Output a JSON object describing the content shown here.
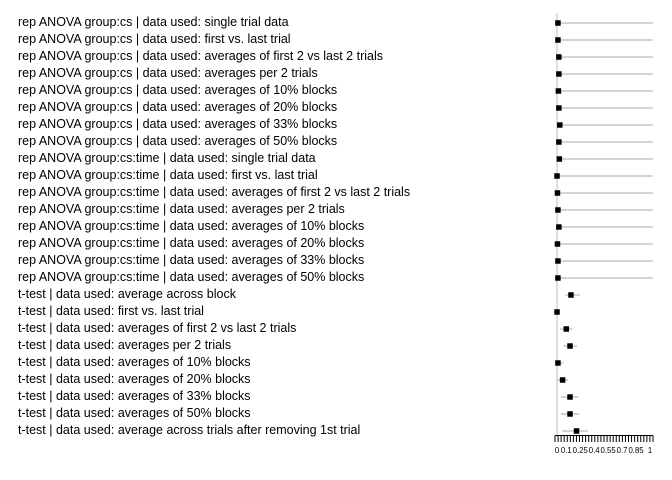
{
  "chart_data": {
    "type": "scatter",
    "description": "Dot plot of p-values with horizontal range lines for different statistical tests and data aggregation methods",
    "xlabel": "",
    "ylabel": "",
    "xlim": [
      0,
      1
    ],
    "grid": false,
    "legend": "none",
    "reference_line_x": 0,
    "marker": "filled-square",
    "colors": {
      "marker": "#000000",
      "range_line": "#c6c6c6",
      "reference_line": "#bdbdbd",
      "axis": "#000000",
      "text": "#000000"
    },
    "x_axis": {
      "tick_labels": [
        "0",
        "0.1",
        "0.25",
        "0.4",
        "0.55",
        "0.7",
        "0.85",
        "1"
      ],
      "tick_label_values": [
        0,
        0.1,
        0.25,
        0.4,
        0.55,
        0.7,
        0.85,
        1
      ],
      "minor_tick_count": 33
    },
    "rows": [
      {
        "label": "rep ANOVA group:cs | data used: single trial data",
        "p": 0.01,
        "lo": 0.0,
        "hi": 1.03
      },
      {
        "label": "rep ANOVA group:cs | data used: first vs. last trial",
        "p": 0.01,
        "lo": 0.0,
        "hi": 1.03
      },
      {
        "label": "rep ANOVA group:cs | data used: averages of first 2 vs last 2 trials",
        "p": 0.02,
        "lo": 0.0,
        "hi": 1.03
      },
      {
        "label": "rep ANOVA group:cs | data used: averages per 2 trials",
        "p": 0.02,
        "lo": 0.0,
        "hi": 1.03
      },
      {
        "label": "rep ANOVA group:cs | data used: averages of 10% blocks",
        "p": 0.015,
        "lo": 0.0,
        "hi": 1.03
      },
      {
        "label": "rep ANOVA group:cs | data used: averages of 20% blocks",
        "p": 0.02,
        "lo": 0.0,
        "hi": 1.03
      },
      {
        "label": "rep ANOVA group:cs | data used: averages of 33% blocks",
        "p": 0.03,
        "lo": 0.0,
        "hi": 1.03
      },
      {
        "label": "rep ANOVA group:cs | data used: averages of 50% blocks",
        "p": 0.02,
        "lo": 0.0,
        "hi": 1.03
      },
      {
        "label": "rep ANOVA group:cs:time | data used: single trial data",
        "p": 0.025,
        "lo": 0.0,
        "hi": 1.03
      },
      {
        "label": "rep ANOVA group:cs:time | data used: first vs. last trial",
        "p": 0.0,
        "lo": 0.0,
        "hi": 1.03
      },
      {
        "label": "rep ANOVA group:cs:time | data used: averages of first 2 vs last 2 trials",
        "p": 0.005,
        "lo": 0.0,
        "hi": 1.03
      },
      {
        "label": "rep ANOVA group:cs:time | data used: averages per 2 trials",
        "p": 0.01,
        "lo": 0.0,
        "hi": 1.03
      },
      {
        "label": "rep ANOVA group:cs:time | data used: averages of 10% blocks",
        "p": 0.02,
        "lo": 0.0,
        "hi": 1.03
      },
      {
        "label": "rep ANOVA group:cs:time | data used: averages of 20% blocks",
        "p": 0.005,
        "lo": 0.0,
        "hi": 1.03
      },
      {
        "label": "rep ANOVA group:cs:time | data used: averages of 33% blocks",
        "p": 0.01,
        "lo": 0.0,
        "hi": 1.03
      },
      {
        "label": "rep ANOVA group:cs:time | data used: averages of 50% blocks",
        "p": 0.01,
        "lo": 0.0,
        "hi": 1.03
      },
      {
        "label": "t-test | data used: average across block",
        "p": 0.15,
        "lo": 0.09,
        "hi": 0.25
      },
      {
        "label": "t-test | data used: first vs. last trial",
        "p": 0.0,
        "lo": 0.0,
        "hi": 0.01
      },
      {
        "label": "t-test | data used: averages of first 2 vs last 2 trials",
        "p": 0.1,
        "lo": 0.03,
        "hi": 0.17
      },
      {
        "label": "t-test | data used: averages per 2 trials",
        "p": 0.14,
        "lo": 0.065,
        "hi": 0.215
      },
      {
        "label": "t-test | data used: averages of 10% blocks",
        "p": 0.01,
        "lo": 0.0,
        "hi": 0.07
      },
      {
        "label": "t-test | data used: averages of 20% blocks",
        "p": 0.06,
        "lo": 0.0,
        "hi": 0.12
      },
      {
        "label": "t-test | data used: averages of 33% blocks",
        "p": 0.14,
        "lo": 0.04,
        "hi": 0.23
      },
      {
        "label": "t-test | data used: averages of 50% blocks",
        "p": 0.14,
        "lo": 0.04,
        "hi": 0.24
      },
      {
        "label": "t-test | data used: average across trials after removing 1st trial",
        "p": 0.21,
        "lo": 0.055,
        "hi": 0.33
      }
    ]
  }
}
